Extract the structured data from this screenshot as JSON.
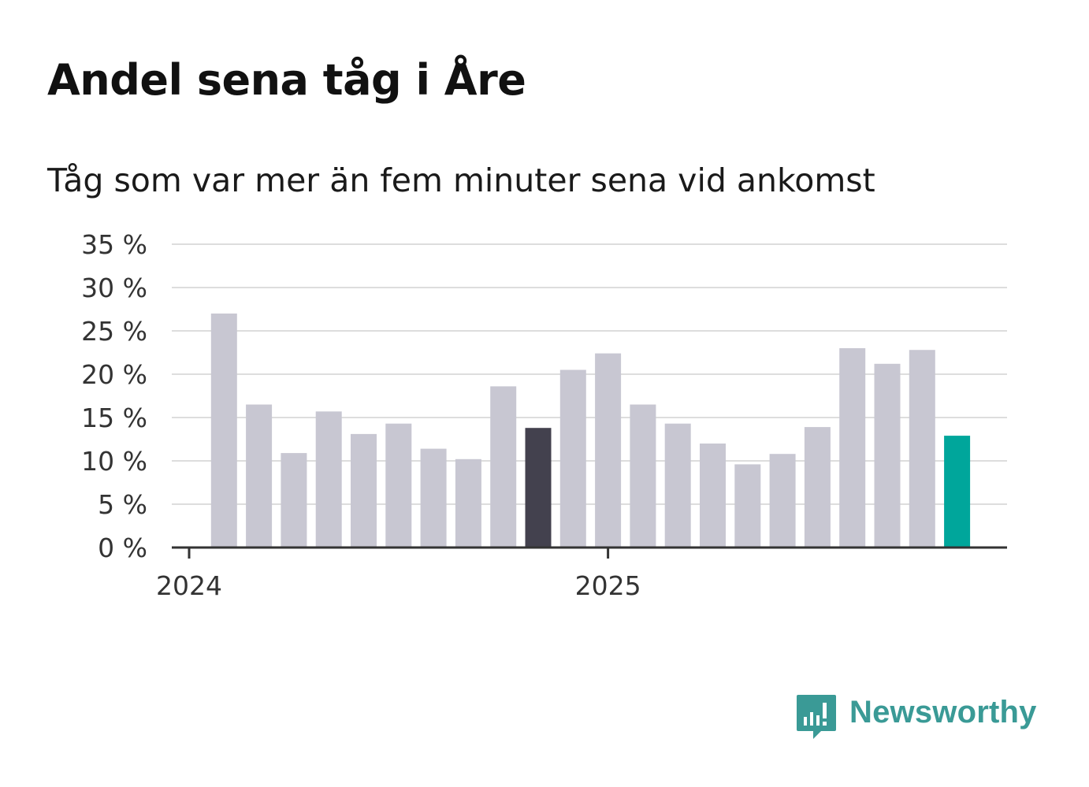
{
  "title": "Andel sena tåg i Åre",
  "subtitle": "Tåg som var mer än fem minuter sena vid ankomst",
  "logo": {
    "text": "Newsworthy",
    "icon": "newsworthy-chart-bubble-icon",
    "color": "#3a9a96"
  },
  "colors": {
    "bar_default": "#c8c7d2",
    "bar_highlight_dark": "#43414e",
    "bar_highlight_current": "#00a69b",
    "grid": "#dddddd",
    "axis": "#333333"
  },
  "chart_data": {
    "type": "bar",
    "title": "Andel sena tåg i Åre",
    "subtitle": "Tåg som var mer än fem minuter sena vid ankomst",
    "xlabel": "",
    "ylabel": "",
    "y_ticks": [
      "0 %",
      "5 %",
      "10 %",
      "15 %",
      "20 %",
      "25 %",
      "30 %",
      "35 %"
    ],
    "ylim": [
      0,
      35
    ],
    "x_tick_labels": [
      {
        "label": "2024",
        "at_index": 0
      },
      {
        "label": "2025",
        "at_index": 12
      }
    ],
    "categories": [
      "2024-01",
      "2024-02",
      "2024-03",
      "2024-04",
      "2024-05",
      "2024-06",
      "2024-07",
      "2024-08",
      "2024-09",
      "2024-10",
      "2024-11",
      "2024-12",
      "2025-01",
      "2025-02",
      "2025-03",
      "2025-04",
      "2025-05",
      "2025-06",
      "2025-07",
      "2025-08",
      "2025-09",
      "2025-10",
      "2025-11",
      "2025-12"
    ],
    "values": [
      null,
      27.0,
      16.5,
      10.9,
      15.7,
      13.1,
      14.3,
      11.4,
      10.2,
      18.6,
      13.8,
      20.5,
      22.4,
      16.5,
      14.3,
      12.0,
      9.6,
      10.8,
      13.9,
      23.0,
      21.2,
      22.8,
      12.9,
      null
    ],
    "bar_colors": [
      "default",
      "default",
      "default",
      "default",
      "default",
      "default",
      "default",
      "default",
      "default",
      "default",
      "dark",
      "default",
      "default",
      "default",
      "default",
      "default",
      "default",
      "default",
      "default",
      "default",
      "default",
      "default",
      "current",
      "default"
    ],
    "grid": true,
    "legend": "none"
  }
}
